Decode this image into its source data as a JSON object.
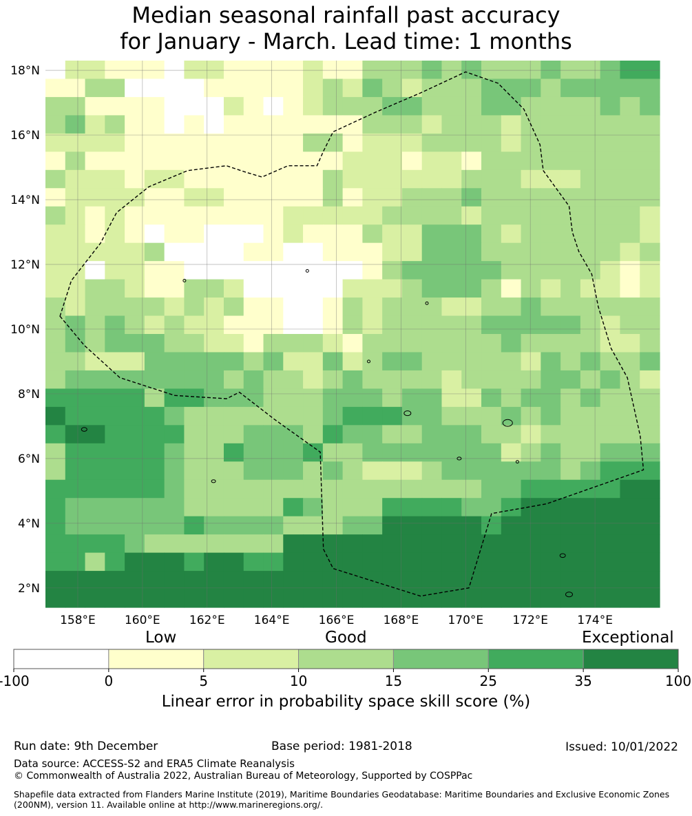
{
  "title": {
    "line1": "Median seasonal rainfall past accuracy",
    "line2": "for January - March. Lead time: 1 months"
  },
  "map": {
    "lat_range": [
      1.4,
      18.3
    ],
    "lon_range": [
      157.0,
      176.0
    ],
    "lat_ticks": [
      {
        "value": 2,
        "label": "2°N"
      },
      {
        "value": 4,
        "label": "4°N"
      },
      {
        "value": 6,
        "label": "6°N"
      },
      {
        "value": 8,
        "label": "8°N"
      },
      {
        "value": 10,
        "label": "10°N"
      },
      {
        "value": 12,
        "label": "12°N"
      },
      {
        "value": 14,
        "label": "14°N"
      },
      {
        "value": 16,
        "label": "16°N"
      },
      {
        "value": 18,
        "label": "18°N"
      }
    ],
    "lon_ticks": [
      {
        "value": 158,
        "label": "158°E"
      },
      {
        "value": 160,
        "label": "160°E"
      },
      {
        "value": 162,
        "label": "162°E"
      },
      {
        "value": 164,
        "label": "164°E"
      },
      {
        "value": 166,
        "label": "166°E"
      },
      {
        "value": 168,
        "label": "168°E"
      },
      {
        "value": 170,
        "label": "170°E"
      },
      {
        "value": 172,
        "label": "172°E"
      },
      {
        "value": 174,
        "label": "174°E"
      }
    ],
    "grid_lines": true,
    "category_colors": [
      "#ffffff",
      "#ffffcc",
      "#d9f0a3",
      "#addd8e",
      "#78c679",
      "#41ab5d",
      "#238443"
    ],
    "grid_rows": [
      "0221110221111211333434333433455",
      "1133000011111232432333444344444",
      "3311110002101233344333443333434",
      "3423110101111111333233323333333",
      "2222111111111331222333323333333",
      "1311111111111112221221333333333",
      "3222122111111132222223332223333",
      "1222211221111131223334333333333",
      "3212111111112222233332333333332",
      "2212101100012111322444323333332",
      "2222230000110011122444333333323",
      "2202211000000000134444433333212",
      "2233211332000002223444313232212",
      "3233332323110013233322334333333",
      "3434323221110013233333444443233",
      "3434443322133321333333343333223",
      "3322244444342242344333332434334",
      "3444444443433234333323333443432",
      "5555535544433344434422434434333",
      "6555554333333345554433343433333",
      "5665555333444354433444332333333",
      "3555554335444533444444423433444",
      "3555554333444343222344444434555",
      "5555554333333333333333445555566",
      "5444444333335433355554456666666",
      "5444444544443334466666566666666",
      "5555433333336666666666666666666",
      "5535666566556666666666666666666",
      "6666666666666666666666666666666",
      "6666666666666666666666666666666"
    ],
    "boundary_label": "EEZ boundary"
  },
  "colorbar": {
    "quality_labels": {
      "low": "Low",
      "good": "Good",
      "exceptional": "Exceptional"
    },
    "tick_labels": [
      "-100",
      "0",
      "5",
      "10",
      "15",
      "25",
      "35",
      "100"
    ],
    "label": "Linear error in probability space skill score (%)"
  },
  "footer": {
    "run_date": "Run date: 9th December",
    "base_period": "Base period: 1981-2018",
    "issued": "Issued: 10/01/2022",
    "data_source": "Data source: ACCESS-S2 and ERA5 Climate Reanalysis",
    "copyright": "© Commonwealth of Australia 2022, Australian Bureau of Meteorology, Supported by COSPPac",
    "shapefile": "Shapefile data extracted from Flanders Marine Institute (2019), Maritime Boundaries Geodatabase: Maritime Boundaries and Exclusive Economic Zones (200NM), version 11. Available online at http://www.marineregions.org/."
  }
}
